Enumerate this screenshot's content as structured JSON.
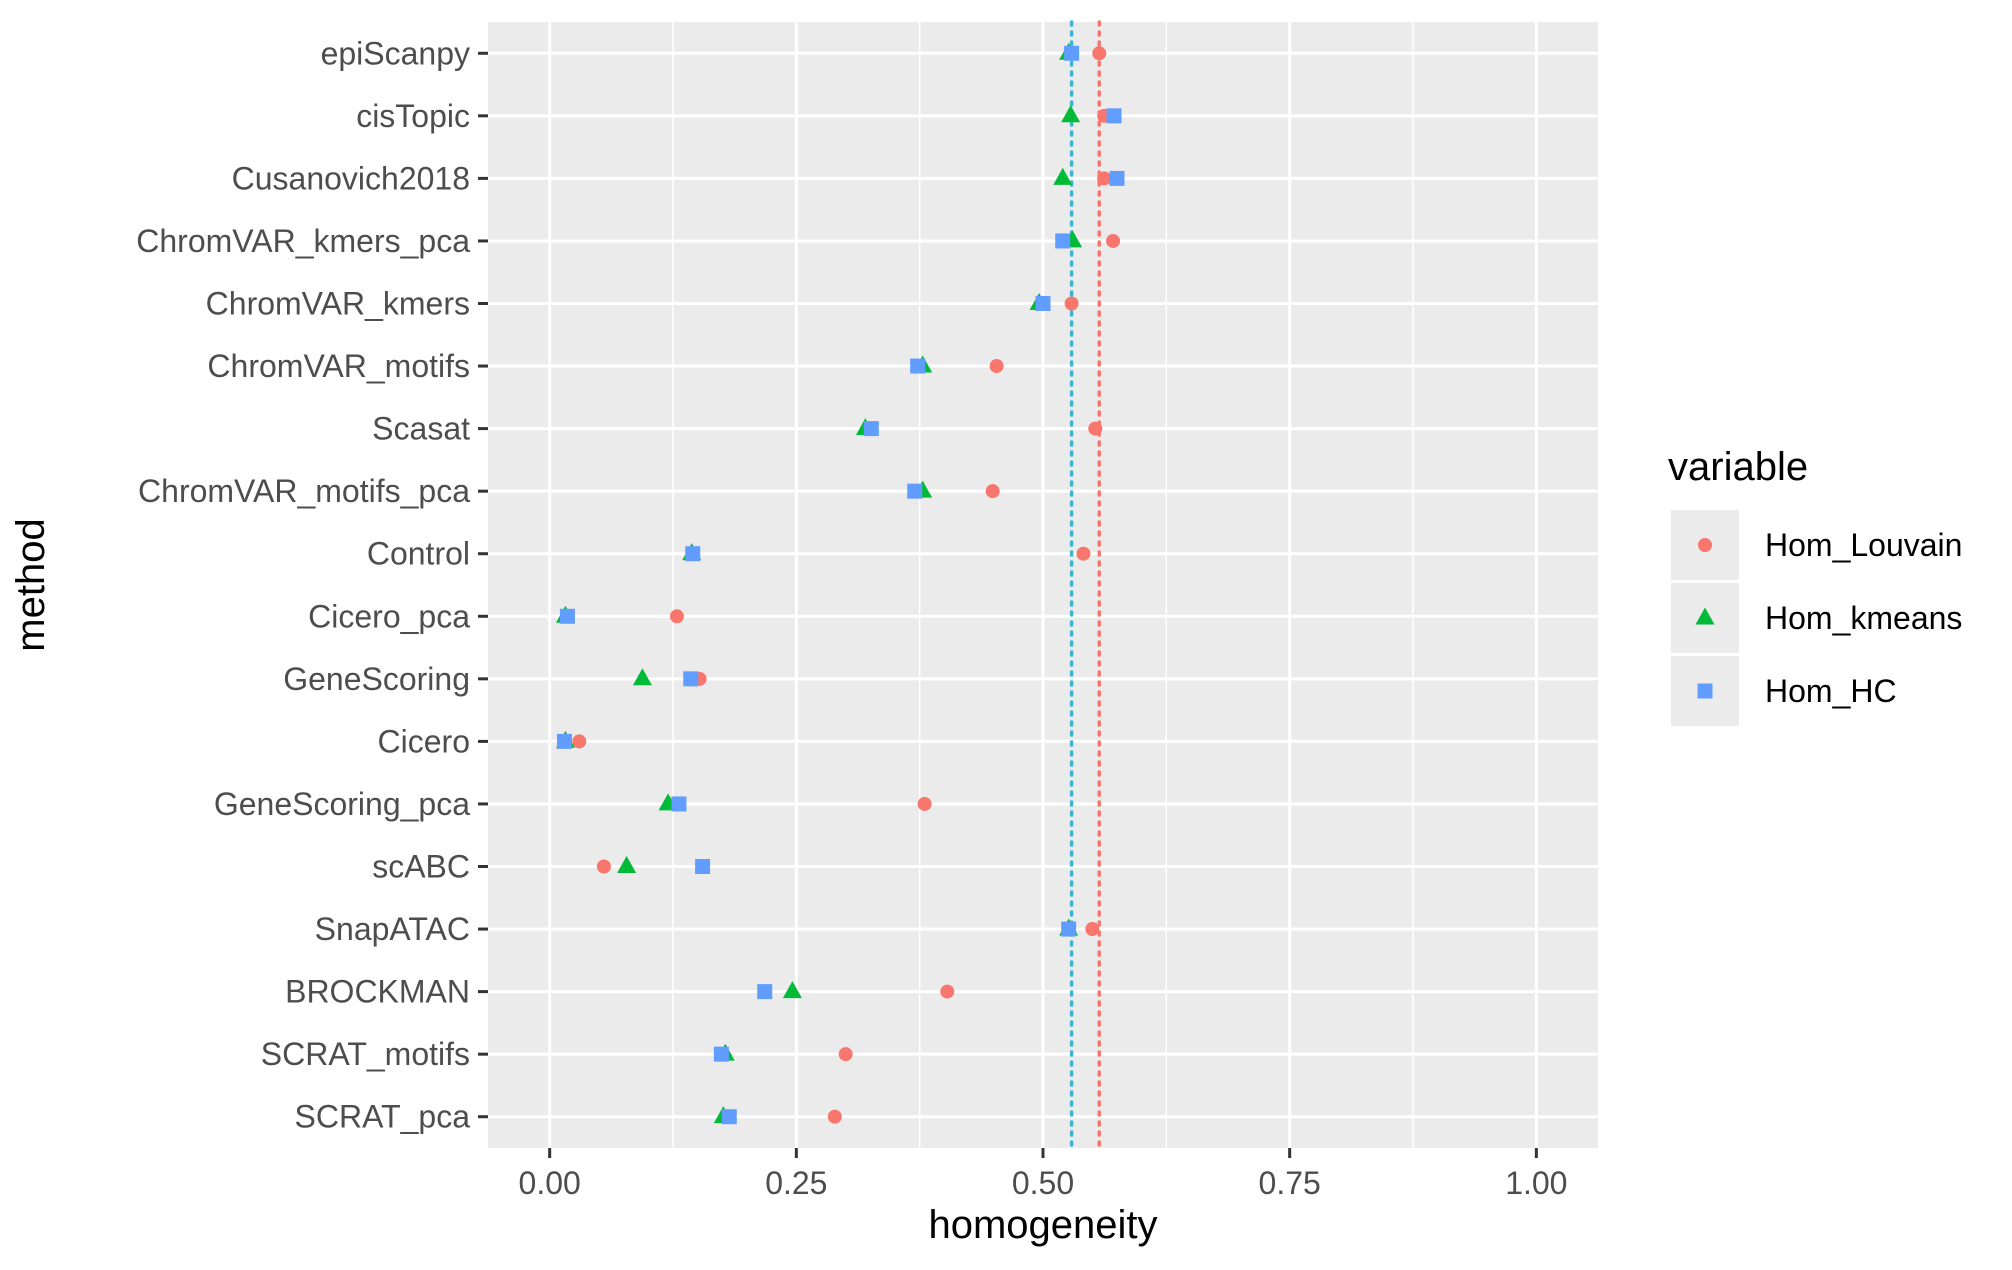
{
  "chart_data": {
    "type": "scatter",
    "title": "",
    "xlabel": "homogeneity",
    "ylabel": "method",
    "xlim": [
      -0.0625,
      1.0625
    ],
    "xticks": [
      0.0,
      0.25,
      0.5,
      0.75,
      1.0
    ],
    "xtick_labels": [
      "0.00",
      "0.25",
      "0.50",
      "0.75",
      "1.00"
    ],
    "grid": true,
    "legend_title": "variable",
    "legend_position": "right",
    "categories": [
      "epiScanpy",
      "cisTopic",
      "Cusanovich2018",
      "ChromVAR_kmers_pca",
      "ChromVAR_kmers",
      "ChromVAR_motifs",
      "Scasat",
      "ChromVAR_motifs_pca",
      "Control",
      "Cicero_pca",
      "GeneScoring",
      "Cicero",
      "GeneScoring_pca",
      "scABC",
      "SnapATAC",
      "BROCKMAN",
      "SCRAT_motifs",
      "SCRAT_pca"
    ],
    "series": [
      {
        "name": "Hom_Louvain",
        "color": "#F8766D",
        "shape": "circle",
        "values": [
          0.557,
          0.562,
          0.562,
          0.571,
          0.529,
          0.453,
          0.553,
          0.449,
          0.541,
          0.129,
          0.152,
          0.03,
          0.38,
          0.055,
          0.55,
          0.403,
          0.3,
          0.289
        ],
        "reference_line": 0.557
      },
      {
        "name": "Hom_kmeans",
        "color": "#00BA38",
        "shape": "triangle",
        "values": [
          0.526,
          0.528,
          0.52,
          0.53,
          0.496,
          0.378,
          0.32,
          0.378,
          0.144,
          0.016,
          0.094,
          0.016,
          0.12,
          0.078,
          0.526,
          0.246,
          0.178,
          0.176
        ]
      },
      {
        "name": "Hom_HC",
        "color": "#619CFF",
        "shape": "square",
        "values": [
          0.529,
          0.572,
          0.575,
          0.52,
          0.5,
          0.373,
          0.326,
          0.37,
          0.145,
          0.018,
          0.143,
          0.015,
          0.131,
          0.155,
          0.526,
          0.218,
          0.174,
          0.182
        ],
        "reference_line": 0.529
      }
    ]
  }
}
